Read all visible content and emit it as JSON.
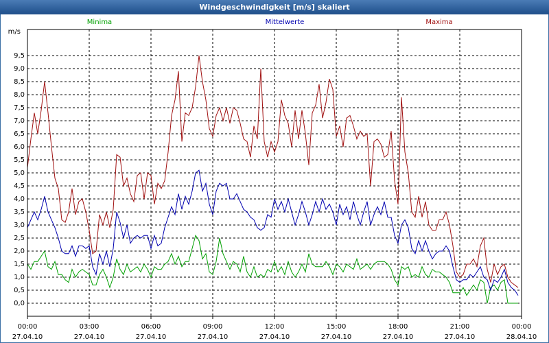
{
  "chart_data": {
    "type": "line",
    "title": "Windgeschwindigkeit [m/s] skaliert",
    "ylabel": "m/s",
    "grid": true,
    "legend": "top",
    "xlim": [
      0,
      1440
    ],
    "ylim": [
      -0.5,
      10.5
    ],
    "xticks": [
      {
        "value": 0,
        "label": [
          "00:00",
          "27.04.10"
        ]
      },
      {
        "value": 180,
        "label": [
          "03:00",
          "27.04.10"
        ]
      },
      {
        "value": 360,
        "label": [
          "06:00",
          "27.04.10"
        ]
      },
      {
        "value": 540,
        "label": [
          "09:00",
          "27.04.10"
        ]
      },
      {
        "value": 720,
        "label": [
          "12:00",
          "27.04.10"
        ]
      },
      {
        "value": 900,
        "label": [
          "15:00",
          "27.04.10"
        ]
      },
      {
        "value": 1080,
        "label": [
          "18:00",
          "27.04.10"
        ]
      },
      {
        "value": 1260,
        "label": [
          "21:00",
          "27.04.10"
        ]
      },
      {
        "value": 1440,
        "label": [
          "00:00",
          "28.04.10"
        ]
      }
    ],
    "yticks": [
      {
        "value": 0,
        "label": "0,0"
      },
      {
        "value": 0.5,
        "label": "0,5"
      },
      {
        "value": 1,
        "label": "1,0"
      },
      {
        "value": 1.5,
        "label": "1,5"
      },
      {
        "value": 2,
        "label": "2,0"
      },
      {
        "value": 2.5,
        "label": "2,5"
      },
      {
        "value": 3,
        "label": "3,0"
      },
      {
        "value": 3.5,
        "label": "3,5"
      },
      {
        "value": 4,
        "label": "4,0"
      },
      {
        "value": 4.5,
        "label": "4,5"
      },
      {
        "value": 5,
        "label": "5,0"
      },
      {
        "value": 5.5,
        "label": "5,5"
      },
      {
        "value": 6,
        "label": "6,0"
      },
      {
        "value": 6.5,
        "label": "6,5"
      },
      {
        "value": 7,
        "label": "7,0"
      },
      {
        "value": 7.5,
        "label": "7,5"
      },
      {
        "value": 8,
        "label": "8,0"
      },
      {
        "value": 8.5,
        "label": "8,5"
      },
      {
        "value": 9,
        "label": "9,0"
      },
      {
        "value": 9.5,
        "label": "9,5"
      }
    ],
    "x": [
      0,
      10,
      20,
      30,
      40,
      50,
      60,
      70,
      80,
      90,
      100,
      110,
      120,
      130,
      140,
      150,
      160,
      170,
      180,
      190,
      200,
      210,
      220,
      230,
      240,
      250,
      260,
      270,
      280,
      290,
      300,
      310,
      320,
      330,
      340,
      350,
      360,
      370,
      380,
      390,
      400,
      410,
      420,
      430,
      440,
      450,
      460,
      470,
      480,
      490,
      500,
      510,
      520,
      530,
      540,
      550,
      560,
      570,
      580,
      590,
      600,
      610,
      620,
      630,
      640,
      650,
      660,
      670,
      680,
      690,
      700,
      710,
      720,
      730,
      740,
      750,
      760,
      770,
      780,
      790,
      800,
      810,
      820,
      830,
      840,
      850,
      860,
      870,
      880,
      890,
      900,
      910,
      920,
      930,
      940,
      950,
      960,
      970,
      980,
      990,
      1000,
      1010,
      1020,
      1030,
      1040,
      1050,
      1060,
      1070,
      1080,
      1090,
      1100,
      1110,
      1120,
      1130,
      1140,
      1150,
      1160,
      1170,
      1180,
      1190,
      1200,
      1210,
      1220,
      1230,
      1240,
      1250,
      1260,
      1270,
      1280,
      1290,
      1300,
      1310,
      1320,
      1330,
      1340,
      1350,
      1360,
      1370,
      1380,
      1390,
      1400,
      1410,
      1420,
      1430
    ],
    "series": [
      {
        "name": "Minima",
        "color": "#00a000",
        "values": [
          1.5,
          1.3,
          1.6,
          1.6,
          1.8,
          2.0,
          1.4,
          1.3,
          1.6,
          1.1,
          1.1,
          0.9,
          0.8,
          1.3,
          1.0,
          1.2,
          1.3,
          1.2,
          1.1,
          0.7,
          0.7,
          1.1,
          1.3,
          1.0,
          0.6,
          1.0,
          1.7,
          1.3,
          1.1,
          1.5,
          1.2,
          1.3,
          1.4,
          1.2,
          1.5,
          1.3,
          1.0,
          1.4,
          1.3,
          1.3,
          1.5,
          1.6,
          1.9,
          1.5,
          1.8,
          1.4,
          1.6,
          1.6,
          2.1,
          2.6,
          2.4,
          1.7,
          1.9,
          1.2,
          1.1,
          1.6,
          2.5,
          1.9,
          1.6,
          1.3,
          1.6,
          1.5,
          1.2,
          1.8,
          1.2,
          1.0,
          1.4,
          1.0,
          1.1,
          1.0,
          1.3,
          1.2,
          1.6,
          1.2,
          1.4,
          1.1,
          1.6,
          1.2,
          1.0,
          1.2,
          1.5,
          1.2,
          1.9,
          1.5,
          1.4,
          1.4,
          1.4,
          1.6,
          1.4,
          1.1,
          1.5,
          1.4,
          1.2,
          1.5,
          1.4,
          1.3,
          1.7,
          1.3,
          1.4,
          1.5,
          1.3,
          1.5,
          1.6,
          1.6,
          1.6,
          1.5,
          1.3,
          0.9,
          0.7,
          1.4,
          1.3,
          1.4,
          1.0,
          1.1,
          1.0,
          1.4,
          1.1,
          1.0,
          1.3,
          1.2,
          1.2,
          1.1,
          1.0,
          0.8,
          0.4,
          0.4,
          0.4,
          0.6,
          0.3,
          0.5,
          0.7,
          0.5,
          0.9,
          0.8,
          0.0,
          0.6,
          0.7,
          0.5,
          0.8,
          0.9,
          0.0,
          0.0,
          0.0,
          0.0
        ]
      },
      {
        "name": "Mittelwerte",
        "color": "#0000b0",
        "values": [
          2.9,
          3.2,
          3.5,
          3.2,
          3.6,
          4.1,
          3.5,
          3.2,
          2.9,
          2.5,
          2.0,
          1.9,
          1.9,
          2.2,
          1.8,
          2.2,
          2.2,
          2.1,
          2.2,
          1.4,
          1.1,
          1.9,
          1.5,
          2.0,
          1.4,
          2.1,
          3.5,
          3.1,
          2.5,
          3.0,
          2.3,
          2.5,
          2.6,
          2.5,
          2.6,
          2.6,
          2.1,
          2.6,
          2.2,
          2.3,
          2.9,
          3.3,
          3.7,
          3.4,
          4.2,
          3.6,
          4.1,
          3.8,
          4.3,
          5.0,
          5.1,
          4.3,
          4.6,
          3.8,
          3.4,
          4.3,
          4.6,
          4.5,
          4.6,
          4.0,
          4.0,
          4.2,
          3.9,
          3.6,
          3.5,
          3.3,
          3.2,
          2.9,
          2.8,
          2.9,
          3.4,
          3.3,
          4.0,
          3.6,
          3.9,
          3.5,
          4.0,
          3.5,
          3.0,
          3.4,
          3.9,
          3.5,
          3.0,
          3.4,
          3.9,
          3.5,
          4.0,
          3.6,
          3.8,
          3.5,
          3.0,
          3.8,
          3.4,
          3.7,
          3.2,
          3.9,
          3.4,
          3.0,
          3.5,
          3.9,
          3.0,
          3.4,
          3.7,
          3.4,
          3.9,
          3.3,
          3.3,
          2.6,
          2.3,
          3.0,
          3.2,
          2.9,
          2.1,
          1.9,
          2.4,
          2.0,
          2.4,
          2.0,
          1.7,
          1.9,
          2.0,
          2.0,
          2.2,
          2.0,
          1.4,
          0.9,
          0.8,
          0.9,
          0.9,
          1.1,
          1.0,
          1.2,
          1.4,
          1.0,
          0.9,
          0.5,
          0.9,
          0.8,
          1.0,
          1.3,
          0.8,
          0.6,
          0.5,
          0.3
        ]
      },
      {
        "name": "Maxima",
        "color": "#a01010",
        "values": [
          5.2,
          6.3,
          7.3,
          6.5,
          7.4,
          8.5,
          7.3,
          6.0,
          4.8,
          4.4,
          3.2,
          3.1,
          3.5,
          4.4,
          3.4,
          3.9,
          4.0,
          3.5,
          2.8,
          1.9,
          2.0,
          3.4,
          3.0,
          3.5,
          2.9,
          3.6,
          5.7,
          5.6,
          4.5,
          4.8,
          4.2,
          3.9,
          4.9,
          5.0,
          4.0,
          5.0,
          4.9,
          3.8,
          4.6,
          4.4,
          4.7,
          5.8,
          7.2,
          7.8,
          8.9,
          6.2,
          7.3,
          7.2,
          7.5,
          8.3,
          9.5,
          8.5,
          7.8,
          6.7,
          6.4,
          7.2,
          7.5,
          7.0,
          7.5,
          6.9,
          7.5,
          7.4,
          6.9,
          6.3,
          6.2,
          5.6,
          6.8,
          6.3,
          9.0,
          6.2,
          5.6,
          6.2,
          5.8,
          6.2,
          7.8,
          7.2,
          6.9,
          6.0,
          7.4,
          6.3,
          7.4,
          6.5,
          5.3,
          7.3,
          7.6,
          8.4,
          7.1,
          7.7,
          8.6,
          8.2,
          6.4,
          6.8,
          6.0,
          7.1,
          7.2,
          6.8,
          6.3,
          6.6,
          6.4,
          6.5,
          4.5,
          6.2,
          6.3,
          6.1,
          5.6,
          5.7,
          6.6,
          4.7,
          3.8,
          7.9,
          5.8,
          5.0,
          3.5,
          3.3,
          4.1,
          3.3,
          3.9,
          3.0,
          2.8,
          2.8,
          3.2,
          3.2,
          3.5,
          3.0,
          2.2,
          1.2,
          1.0,
          1.1,
          1.5,
          1.5,
          1.7,
          1.4,
          2.2,
          2.5,
          1.3,
          0.8,
          1.5,
          1.1,
          1.4,
          1.5,
          1.0,
          0.8,
          0.7,
          0.6
        ]
      }
    ]
  }
}
